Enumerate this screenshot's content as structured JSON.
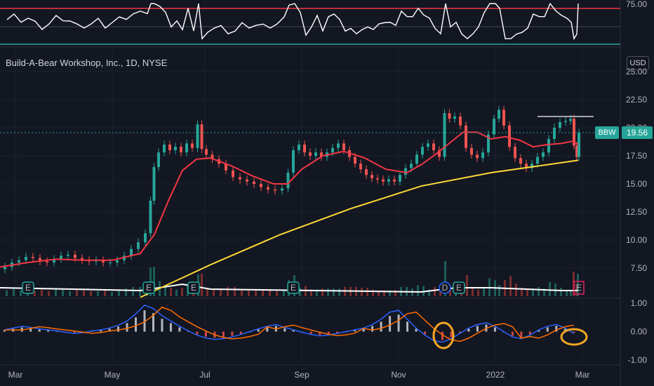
{
  "header": {
    "title": "Build-A-Bear Workshop, Inc., 1D, NYSE",
    "currency": "USD"
  },
  "price_tag": {
    "ticker": "BBW",
    "value": "19.56"
  },
  "rsi_axis_label": "75.00",
  "colors": {
    "background": "#131722",
    "up": "#26a69a",
    "down": "#ef5350",
    "ma_fast": "#f23645",
    "ma_slow": "#fdd835",
    "macd": "#2962ff",
    "signal": "#ff6d00",
    "rsi_line": "#ffffff",
    "rsi_band": "#f23645",
    "annotation": "#f5a623"
  },
  "chart_data": [
    {
      "type": "candlestick",
      "panel": "price",
      "title": "Build-A-Bear Workshop, Inc., 1D, NYSE",
      "ylim": [
        5,
        25
      ],
      "yticks": [
        "25.00",
        "22.50",
        "20.00",
        "17.50",
        "15.00",
        "12.50",
        "10.00",
        "7.50"
      ],
      "xticks": [
        "Mar",
        "May",
        "Jul",
        "Sep",
        "Nov",
        "2022",
        "Mar"
      ],
      "last_price": 19.56,
      "resistance_level": 21.0,
      "ohlc_path": [
        [
          0,
          7.4
        ],
        [
          10,
          7.6
        ],
        [
          20,
          8.0
        ],
        [
          30,
          8.2
        ],
        [
          40,
          8.5
        ],
        [
          50,
          8.4
        ],
        [
          60,
          8.1
        ],
        [
          70,
          8.0
        ],
        [
          80,
          8.3
        ],
        [
          90,
          8.6
        ],
        [
          100,
          8.7
        ],
        [
          110,
          8.4
        ],
        [
          120,
          8.2
        ],
        [
          130,
          8.1
        ],
        [
          140,
          8.2
        ],
        [
          150,
          8.0
        ],
        [
          160,
          8.0
        ],
        [
          170,
          8.2
        ],
        [
          180,
          8.6
        ],
        [
          190,
          9.2
        ],
        [
          200,
          9.8
        ],
        [
          210,
          10.6
        ],
        [
          215,
          13.5
        ],
        [
          220,
          16.5
        ],
        [
          228,
          17.8
        ],
        [
          236,
          18.5
        ],
        [
          244,
          18.0
        ],
        [
          252,
          18.3
        ],
        [
          260,
          17.8
        ],
        [
          268,
          18.6
        ],
        [
          276,
          18.2
        ],
        [
          283,
          20.3
        ],
        [
          288,
          18.1
        ],
        [
          296,
          17.6
        ],
        [
          305,
          17.2
        ],
        [
          315,
          16.8
        ],
        [
          325,
          16.2
        ],
        [
          335,
          15.6
        ],
        [
          345,
          15.4
        ],
        [
          355,
          15.2
        ],
        [
          365,
          15.0
        ],
        [
          375,
          14.7
        ],
        [
          385,
          14.5
        ],
        [
          395,
          14.4
        ],
        [
          405,
          14.6
        ],
        [
          412,
          16.0
        ],
        [
          420,
          18.0
        ],
        [
          428,
          18.5
        ],
        [
          436,
          17.8
        ],
        [
          444,
          17.5
        ],
        [
          452,
          17.8
        ],
        [
          460,
          17.4
        ],
        [
          468,
          17.8
        ],
        [
          476,
          18.2
        ],
        [
          484,
          18.6
        ],
        [
          492,
          18.0
        ],
        [
          500,
          17.4
        ],
        [
          508,
          16.8
        ],
        [
          516,
          16.3
        ],
        [
          524,
          15.8
        ],
        [
          532,
          15.5
        ],
        [
          540,
          15.4
        ],
        [
          548,
          15.2
        ],
        [
          556,
          15.4
        ],
        [
          564,
          15.2
        ],
        [
          572,
          15.8
        ],
        [
          580,
          16.4
        ],
        [
          588,
          16.8
        ],
        [
          596,
          17.6
        ],
        [
          604,
          18.3
        ],
        [
          612,
          18.6
        ],
        [
          620,
          18.0
        ],
        [
          628,
          17.4
        ],
        [
          635,
          21.3
        ],
        [
          642,
          20.8
        ],
        [
          650,
          21.0
        ],
        [
          658,
          20.2
        ],
        [
          666,
          18.2
        ],
        [
          674,
          17.6
        ],
        [
          682,
          17.3
        ],
        [
          690,
          17.8
        ],
        [
          698,
          19.4
        ],
        [
          706,
          20.8
        ],
        [
          712,
          21.6
        ],
        [
          720,
          20.2
        ],
        [
          728,
          18.3
        ],
        [
          736,
          17.3
        ],
        [
          744,
          16.8
        ],
        [
          752,
          16.4
        ],
        [
          760,
          16.8
        ],
        [
          768,
          17.4
        ],
        [
          776,
          17.8
        ],
        [
          784,
          19.0
        ],
        [
          792,
          20.0
        ],
        [
          800,
          20.5
        ],
        [
          808,
          20.6
        ],
        [
          814,
          20.8
        ],
        [
          818,
          18.4
        ],
        [
          822,
          17.4
        ],
        [
          824,
          19.56
        ]
      ],
      "ma_fast_path": [
        [
          0,
          7.6
        ],
        [
          40,
          8.0
        ],
        [
          80,
          8.3
        ],
        [
          120,
          8.2
        ],
        [
          160,
          8.2
        ],
        [
          200,
          8.8
        ],
        [
          220,
          10.5
        ],
        [
          240,
          13.5
        ],
        [
          260,
          16.2
        ],
        [
          280,
          17.2
        ],
        [
          300,
          17.3
        ],
        [
          330,
          16.6
        ],
        [
          360,
          15.7
        ],
        [
          390,
          15.0
        ],
        [
          410,
          15.0
        ],
        [
          430,
          16.3
        ],
        [
          460,
          17.5
        ],
        [
          490,
          17.9
        ],
        [
          520,
          17.3
        ],
        [
          550,
          16.3
        ],
        [
          580,
          16.0
        ],
        [
          600,
          16.7
        ],
        [
          620,
          17.6
        ],
        [
          640,
          18.6
        ],
        [
          660,
          19.6
        ],
        [
          680,
          19.6
        ],
        [
          700,
          19.0
        ],
        [
          720,
          19.2
        ],
        [
          740,
          18.9
        ],
        [
          760,
          18.3
        ],
        [
          780,
          18.5
        ],
        [
          800,
          18.6
        ],
        [
          816,
          18.8
        ],
        [
          824,
          18.5
        ]
      ],
      "ma_slow_path": [
        [
          200,
          4.9
        ],
        [
          300,
          7.8
        ],
        [
          400,
          10.5
        ],
        [
          500,
          12.8
        ],
        [
          600,
          14.8
        ],
        [
          700,
          16.0
        ],
        [
          824,
          17.1
        ]
      ],
      "earnings_markers": [
        "E",
        "E",
        "E",
        "E",
        "D",
        "E"
      ]
    },
    {
      "type": "line",
      "panel": "rsi",
      "yticks": [
        "75.00"
      ],
      "upper_band": 75,
      "lower_band": 25
    },
    {
      "type": "bar",
      "panel": "macd",
      "ylim": [
        -1.0,
        1.0
      ],
      "yticks": [
        "1.00",
        "0.00",
        "-1.00"
      ],
      "series": [
        {
          "name": "",
          "values": [
            0.05,
            0.1,
            0.15,
            0.12,
            0.08,
            0.05,
            0.02,
            -0.02,
            -0.05,
            -0.03,
            0.02,
            0.05,
            0.1,
            0.18,
            0.3,
            0.5,
            0.75,
            0.65,
            0.45,
            0.3,
            0.15,
            0.02,
            -0.1,
            -0.18,
            -0.22,
            -0.2,
            -0.15,
            -0.08,
            0.0,
            0.08,
            0.15,
            0.2,
            0.12,
            0.05,
            -0.02,
            -0.08,
            -0.12,
            -0.1,
            -0.05,
            0.0,
            0.05,
            0.1,
            0.2,
            0.35,
            0.55,
            0.6,
            0.35,
            0.1,
            -0.1,
            -0.25,
            -0.3,
            -0.2,
            -0.05,
            0.1,
            0.2,
            0.25,
            0.15,
            0.0,
            -0.15,
            -0.2,
            -0.1,
            0.05,
            0.15,
            0.2,
            0.1,
            -0.05
          ]
        }
      ]
    }
  ]
}
